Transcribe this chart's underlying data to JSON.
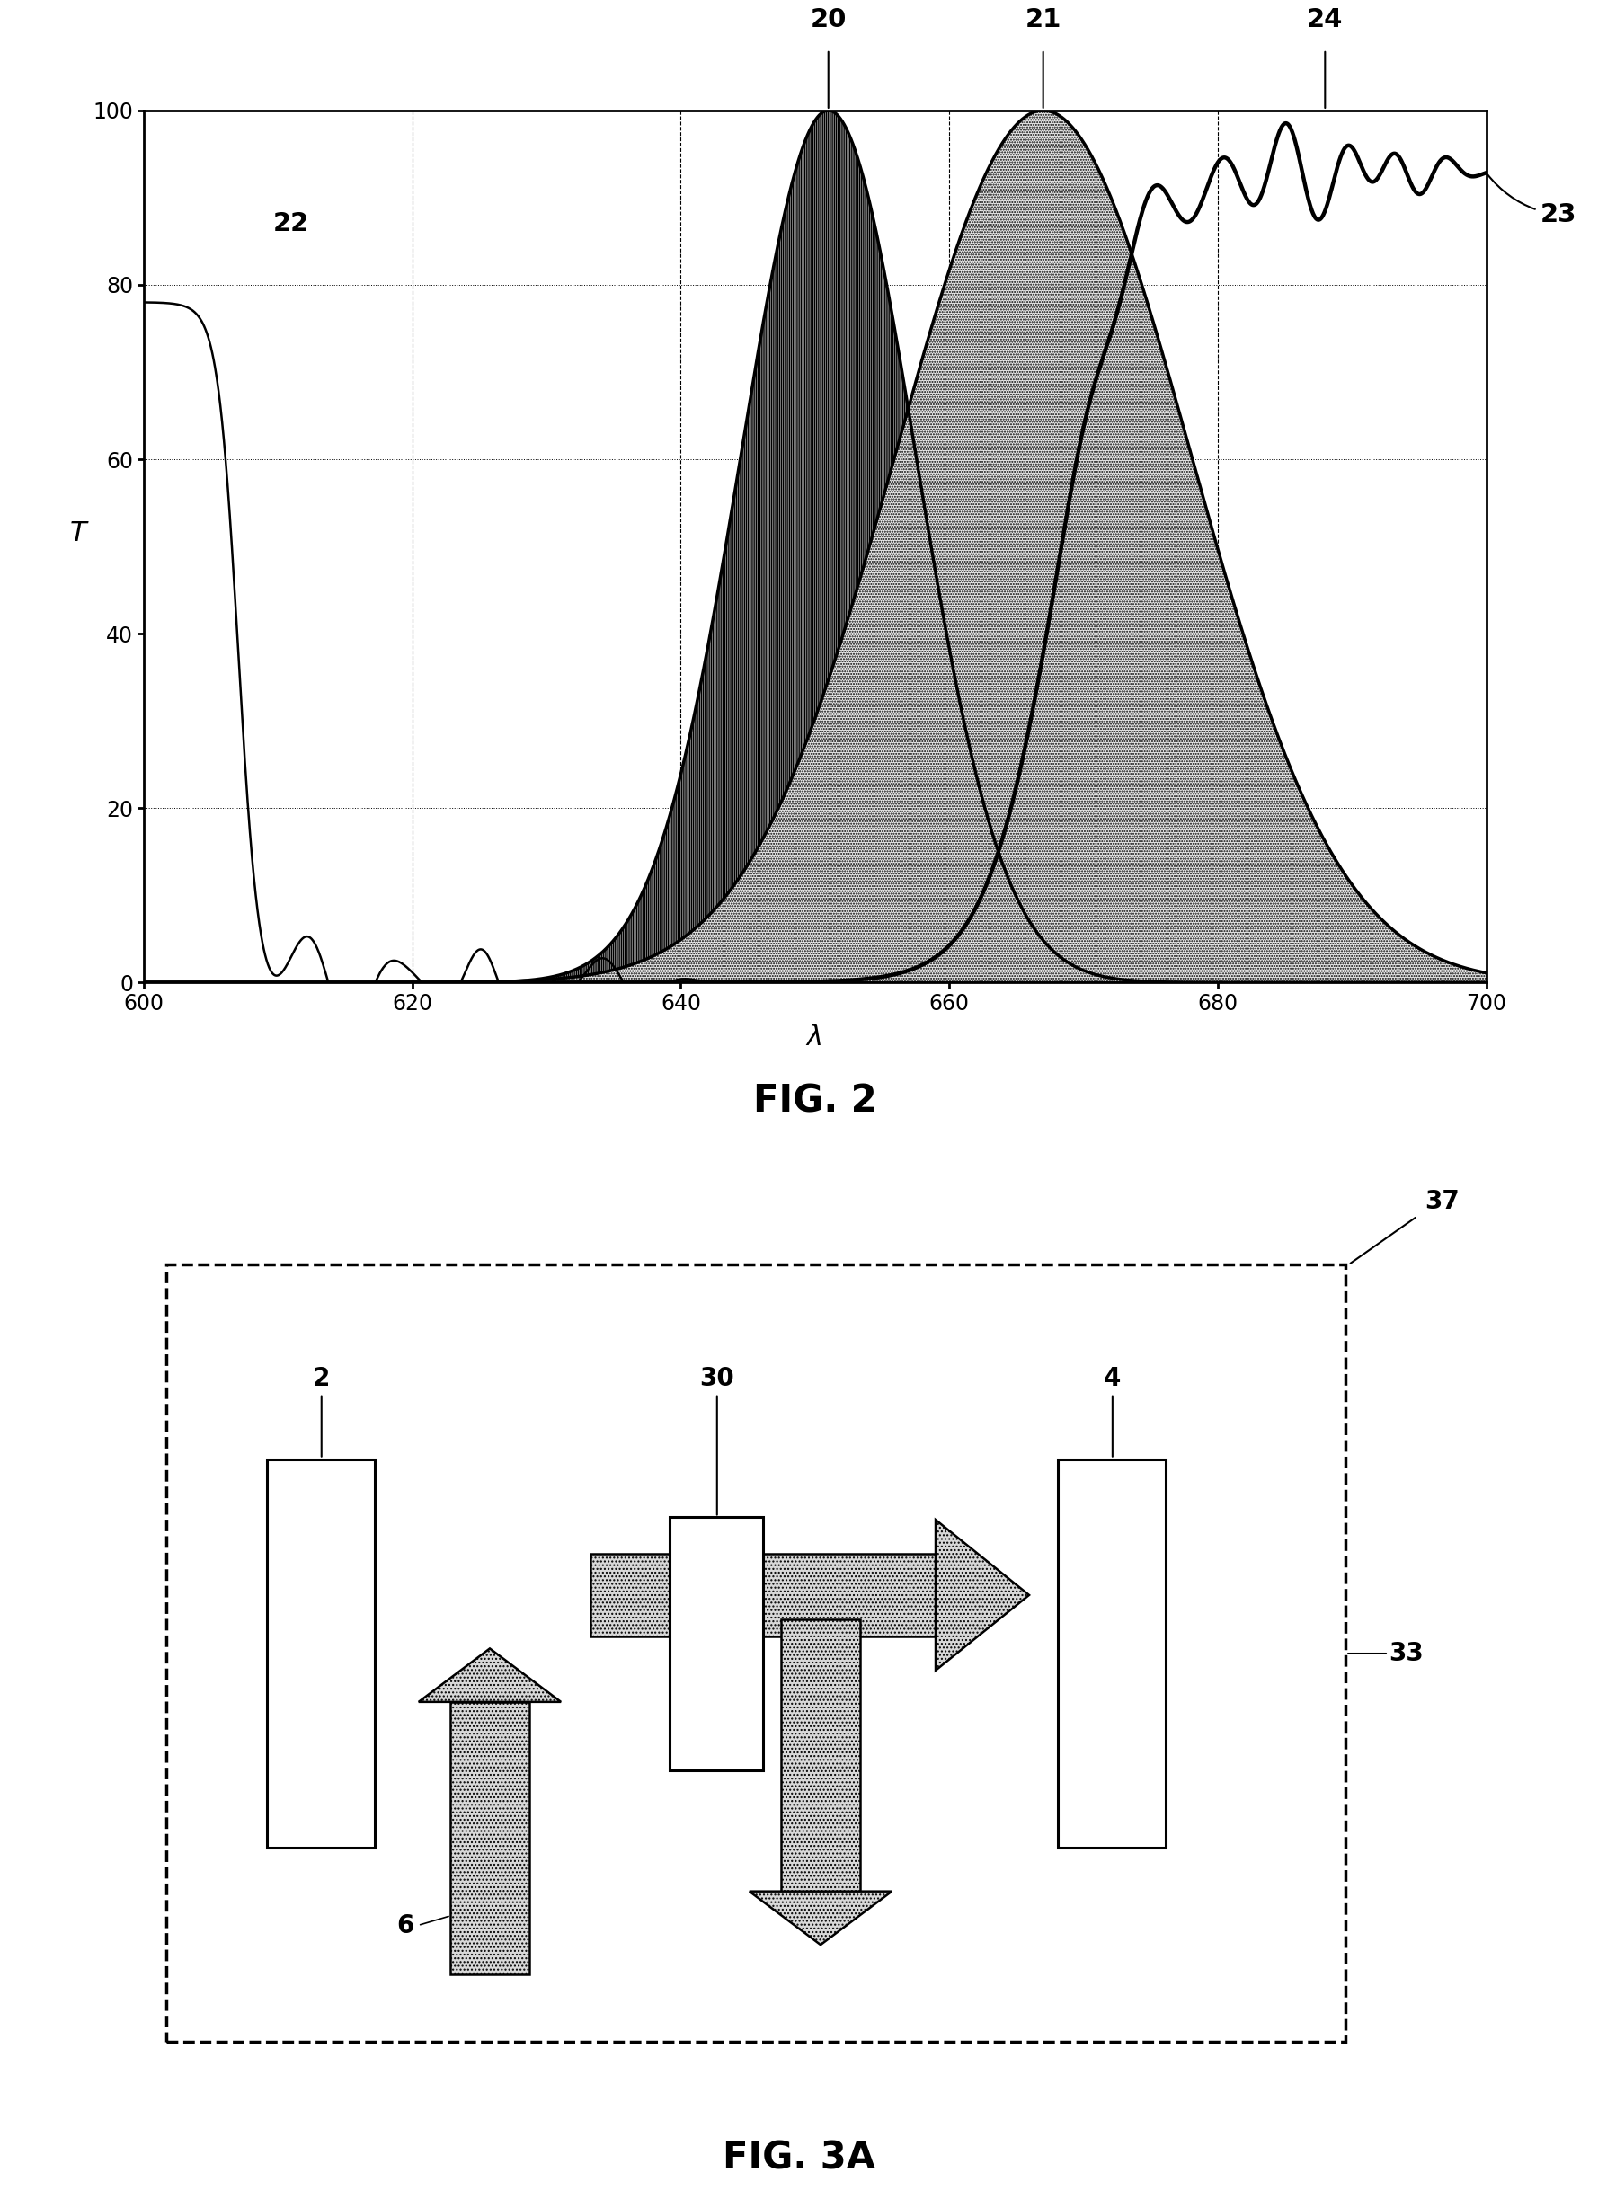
{
  "fig2": {
    "xlim": [
      600,
      700
    ],
    "ylim": [
      0,
      100
    ],
    "xticks": [
      600,
      620,
      640,
      660,
      680,
      700
    ],
    "yticks": [
      0,
      20,
      40,
      60,
      80,
      100
    ],
    "xlabel": "λ",
    "ylabel": "T",
    "title": "FIG. 2",
    "curve20_mu": 651,
    "curve20_sigma": 6.5,
    "curve21_mu": 667,
    "curve21_sigma": 11,
    "curve23_inflection": 668,
    "curve23_rate": 0.35,
    "curve23_max": 93
  },
  "fig3a": {
    "title": "FIG. 3A"
  }
}
